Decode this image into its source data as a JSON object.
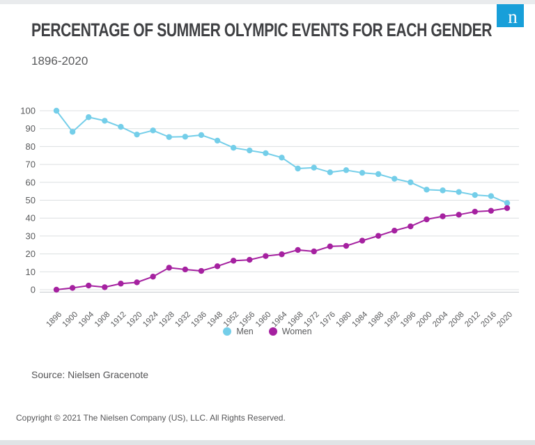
{
  "logo": {
    "letter": "n",
    "color": "#189fd9"
  },
  "header": {
    "title": "PERCENTAGE OF SUMMER OLYMPIC EVENTS FOR EACH GENDER",
    "subtitle": "1896-2020"
  },
  "chart_data": {
    "type": "line",
    "title": "Percentage of Summer Olympic events for each gender",
    "categories": [
      1896,
      1900,
      1904,
      1908,
      1912,
      1920,
      1924,
      1928,
      1932,
      1936,
      1948,
      1952,
      1956,
      1960,
      1964,
      1968,
      1972,
      1976,
      1980,
      1984,
      1988,
      1992,
      1996,
      2000,
      2004,
      2008,
      2012,
      2016,
      2020
    ],
    "series": [
      {
        "name": "Men",
        "color": "#74cee9",
        "values": [
          100,
          88.2,
          96.4,
          94.4,
          91.0,
          86.7,
          89.0,
          85.3,
          85.5,
          86.4,
          83.3,
          79.3,
          77.8,
          76.3,
          73.8,
          67.7,
          68.2,
          65.6,
          66.8,
          65.3,
          64.6,
          62.0,
          60.0,
          55.9,
          55.5,
          54.6,
          52.9,
          52.3,
          48.4
        ]
      },
      {
        "name": "Women",
        "color": "#a521a0",
        "values": [
          0,
          1.0,
          2.3,
          1.4,
          3.4,
          4.1,
          7.3,
          12.3,
          11.3,
          10.5,
          13.1,
          16.2,
          16.7,
          18.8,
          19.8,
          22.2,
          21.4,
          24.2,
          24.5,
          27.4,
          30.1,
          33.0,
          35.4,
          39.3,
          41.0,
          41.9,
          43.6,
          44.1,
          45.6
        ]
      }
    ],
    "xlabel": "",
    "ylabel": "",
    "ylim": [
      0,
      100
    ],
    "y_ticks": [
      0,
      10,
      20,
      30,
      40,
      50,
      60,
      70,
      80,
      90,
      100
    ],
    "grid": true,
    "legend_position": "bottom",
    "colors": {
      "grid": "#dcdfe1",
      "axis": "#c6cbce",
      "tick_text": "#58595b"
    }
  },
  "footer": {
    "source": "Source: Nielsen Gracenote",
    "copyright": "Copyright © 2021 The Nielsen Company (US), LLC. All Rights Reserved."
  }
}
